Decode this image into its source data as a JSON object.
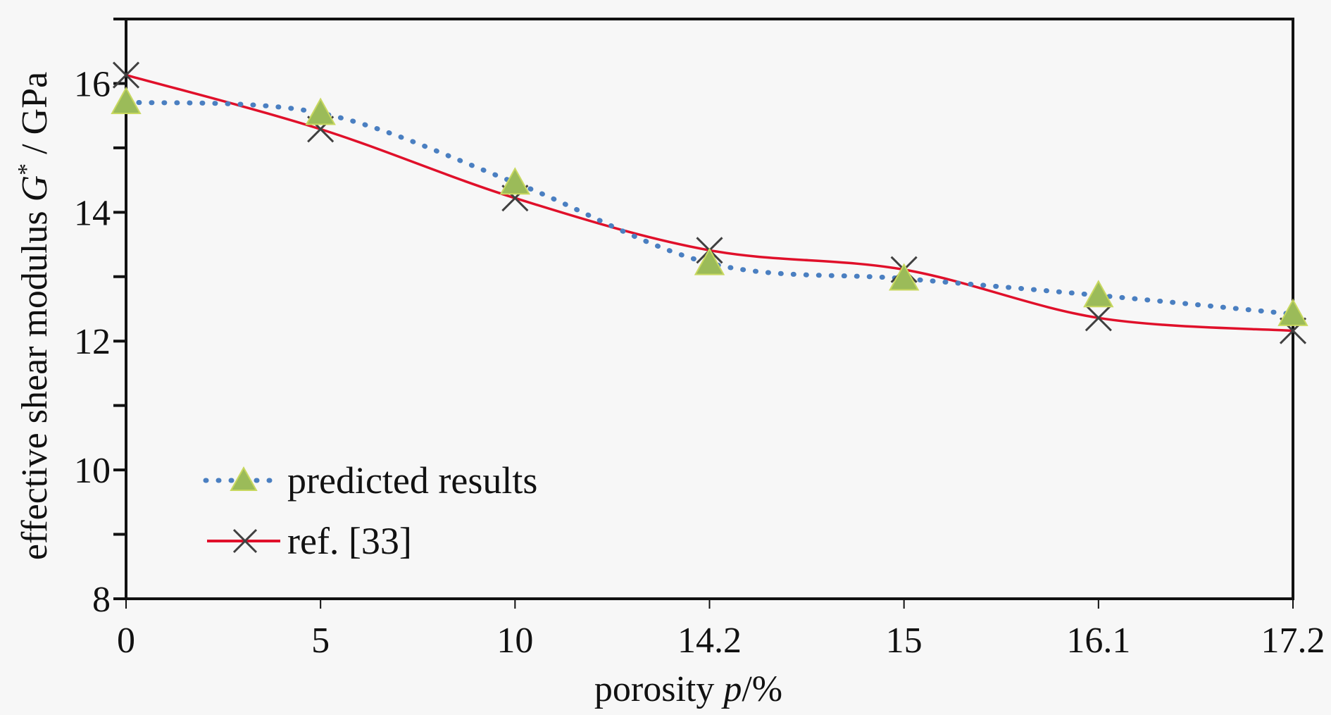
{
  "chart_data": {
    "type": "line",
    "title": "",
    "xlabel": "porosity p /%",
    "xlabel_main": "porosity ",
    "xlabel_var": "p",
    "xlabel_unit": "/%",
    "ylabel": "effective shear modulus G* / GPa",
    "ylabel_main": "effective shear modulus ",
    "ylabel_var": "G",
    "ylabel_sup": "*",
    "ylabel_unit": " / GPa",
    "x_axis_type": "categorical",
    "categories": [
      "0",
      "5",
      "10",
      "14.2",
      "15",
      "16.1",
      "17.2"
    ],
    "ylim": [
      8,
      17
    ],
    "yticks": [
      8,
      10,
      12,
      14,
      16
    ],
    "ytick_labels": [
      "8",
      "10",
      "12",
      "14",
      "16"
    ],
    "grid": false,
    "legend_position": "lower-left",
    "series": [
      {
        "name": "predicted results",
        "style": "dotted",
        "marker": "triangle",
        "line_color": "#4a7fc1",
        "marker_color": "#9bbb59",
        "values": [
          15.71,
          15.54,
          14.46,
          13.21,
          12.97,
          12.71,
          12.42
        ]
      },
      {
        "name": "ref. [33]",
        "style": "solid",
        "marker": "x",
        "line_color": "#e0102a",
        "marker_color": "#404040",
        "values": [
          16.13,
          15.29,
          14.22,
          13.41,
          13.11,
          12.36,
          12.16
        ]
      }
    ]
  }
}
